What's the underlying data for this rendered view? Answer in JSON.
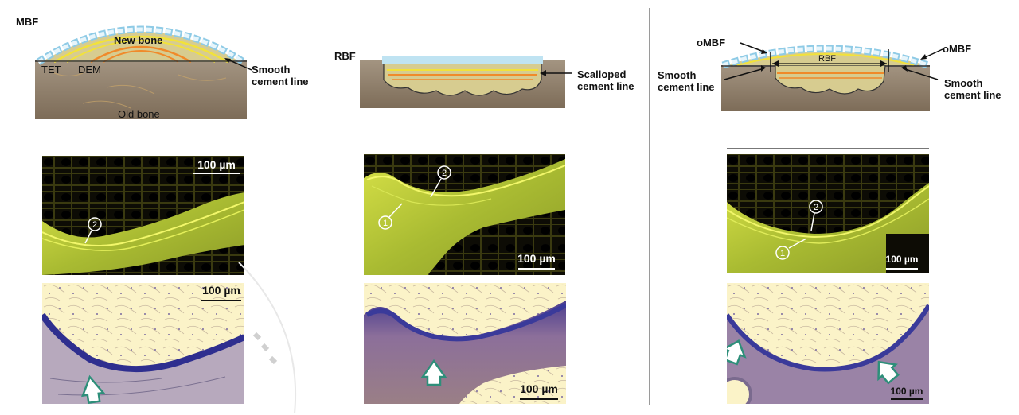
{
  "panels": [
    {
      "id": "mbf",
      "title": "MBF",
      "labels": {
        "new_bone": "New bone",
        "tet": "TET",
        "dem": "DEM",
        "old_bone": "Old bone",
        "cement_line": "Smooth cement line"
      },
      "fluorescence": {
        "scale_bar": "100 µm",
        "markers": [
          "2"
        ]
      },
      "histology": {
        "scale_bar": "100 µm"
      }
    },
    {
      "id": "rbf",
      "title": "RBF",
      "labels": {
        "cement_line": "Scalloped cement line"
      },
      "fluorescence": {
        "scale_bar": "100 µm",
        "markers": [
          "2",
          "1"
        ]
      },
      "histology": {
        "scale_bar": "100 µm"
      }
    },
    {
      "id": "ombf",
      "labels": {
        "ombf_left": "oMBF",
        "ombf_right": "oMBF",
        "rbf": "RBF",
        "cement_left": "Smooth cement line",
        "cement_right": "Smooth cement line"
      },
      "fluorescence": {
        "scale_bar": "100 µm",
        "markers": [
          "2",
          "1"
        ]
      },
      "histology": {
        "scale_bar": "100 µm"
      }
    }
  ],
  "colors": {
    "old_bone": "#8b7b66",
    "new_bone": "#d9c58a",
    "label_line_yellow": "#f2e23a",
    "label_line_orange": "#f08a2a",
    "lining_cells": "#bfe3f2",
    "fluor_bg": "#0d0c05",
    "fluor_bone": "#b6c83a",
    "histo_bg": "#fbf3c8",
    "histo_bone": "#7a5a8e",
    "arrow": "#2e8f7a"
  }
}
